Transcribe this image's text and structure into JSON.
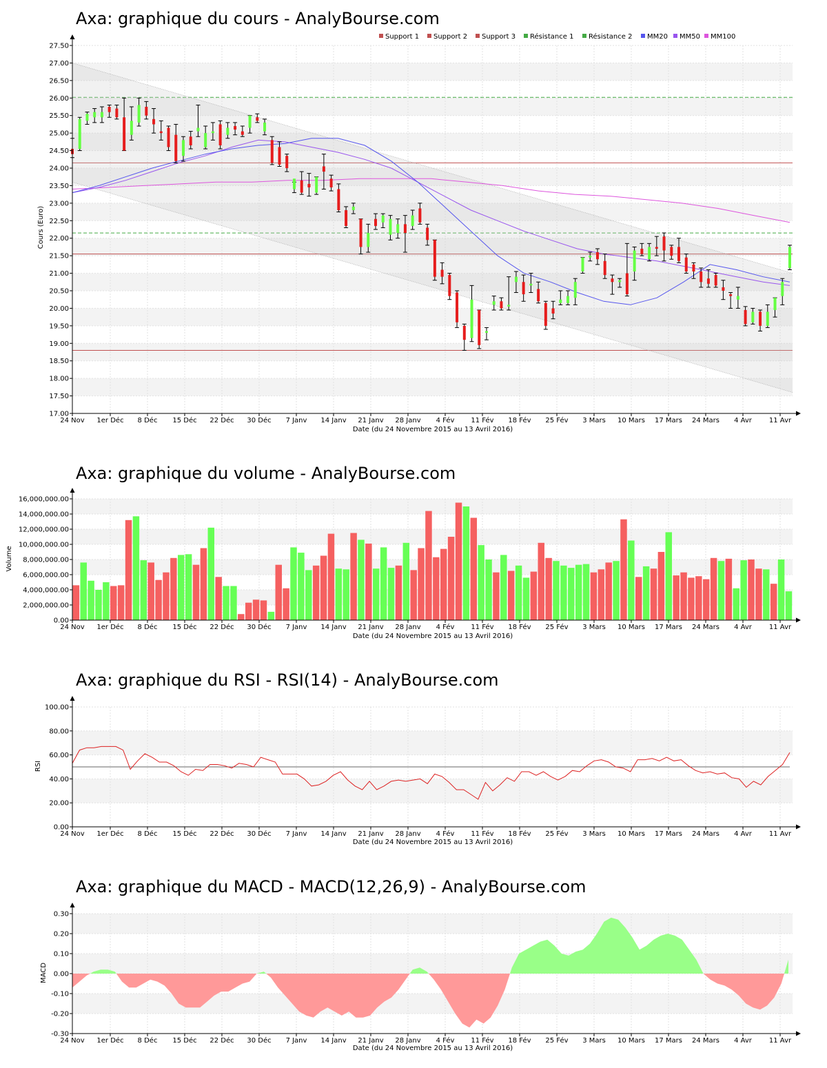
{
  "page": {
    "x_labels": [
      "24 Nov",
      "1er Déc",
      "8 Déc",
      "15 Déc",
      "22 Déc",
      "30 Déc",
      "7 Janv",
      "14 Janv",
      "21 Janv",
      "28 Janv",
      "4 Fév",
      "11 Fév",
      "18 Fév",
      "25 Fév",
      "3 Mars",
      "10 Mars",
      "17 Mars",
      "24 Mars",
      "4 Avr",
      "11 Avr"
    ],
    "date_label": "Date (du 24 Novembre 2015 au 13 Avril 2016)"
  },
  "colors": {
    "up": "#66ff44",
    "down": "#e61d1d",
    "vol_up": "#66ff55",
    "vol_down": "#f56060",
    "support": "#c05050",
    "resistance": "#44aa44",
    "mm20": "#5555ee",
    "mm50": "#9955ee",
    "mm100": "#dd55dd",
    "rsi": "#dd2222",
    "macd_pos": "#99ff88",
    "macd_neg": "#ff9999"
  },
  "chart_data": [
    {
      "type": "candlestick",
      "title": "Axa: graphique du cours - AnalyBourse.com",
      "ylabel": "Cours (Euro)",
      "ylim": [
        17.0,
        27.5
      ],
      "yticks": [
        "17.00",
        "17.50",
        "18.00",
        "18.50",
        "19.00",
        "19.50",
        "20.00",
        "20.50",
        "21.00",
        "21.50",
        "22.00",
        "22.50",
        "23.00",
        "23.50",
        "24.00",
        "24.50",
        "25.00",
        "25.50",
        "26.00",
        "26.50",
        "27.00",
        "27.50"
      ],
      "legend": [
        "Support 1",
        "Support 2",
        "Support 3",
        "Résistance 1",
        "Résistance 2",
        "MM20",
        "MM50",
        "MM100"
      ],
      "support_levels": [
        21.55,
        24.15,
        18.8
      ],
      "resistance_levels": [
        22.15,
        26.02
      ],
      "channel_upper": [
        27.0,
        21.0
      ],
      "channel_lower": [
        23.6,
        17.6
      ],
      "candles": [
        [
          24.55,
          24.85,
          24.4,
          24.3
        ],
        [
          24.55,
          25.45,
          25.4,
          24.5
        ],
        [
          25.35,
          25.6,
          25.55,
          25.25
        ],
        [
          25.45,
          25.7,
          25.6,
          25.3
        ],
        [
          25.45,
          25.75,
          25.6,
          25.3
        ],
        [
          25.75,
          25.8,
          25.6,
          25.45
        ],
        [
          25.7,
          25.8,
          25.45,
          25.4
        ],
        [
          25.45,
          26.0,
          24.5,
          24.5
        ],
        [
          24.95,
          25.75,
          25.35,
          24.8
        ],
        [
          25.3,
          26.0,
          25.8,
          25.2
        ],
        [
          25.75,
          25.9,
          25.5,
          25.4
        ],
        [
          25.4,
          25.7,
          25.25,
          25.0
        ],
        [
          25.05,
          25.35,
          25.0,
          24.8
        ],
        [
          25.15,
          25.2,
          24.6,
          24.5
        ],
        [
          24.95,
          25.25,
          24.2,
          24.15
        ],
        [
          24.35,
          24.9,
          24.8,
          24.2
        ],
        [
          24.9,
          25.05,
          24.65,
          24.55
        ],
        [
          25.05,
          25.8,
          25.15,
          24.9
        ],
        [
          24.6,
          25.2,
          25.0,
          24.55
        ],
        [
          25.0,
          25.3,
          25.05,
          24.8
        ],
        [
          25.25,
          25.35,
          24.65,
          24.55
        ],
        [
          24.95,
          25.3,
          25.15,
          24.85
        ],
        [
          25.2,
          25.3,
          25.1,
          24.95
        ],
        [
          25.05,
          25.2,
          24.95,
          24.9
        ],
        [
          25.15,
          25.5,
          25.5,
          25.0
        ],
        [
          25.45,
          25.55,
          25.35,
          25.3
        ],
        [
          25.05,
          25.4,
          25.3,
          24.95
        ],
        [
          24.8,
          24.9,
          24.15,
          24.1
        ],
        [
          24.6,
          24.75,
          24.1,
          24.05
        ],
        [
          24.35,
          24.4,
          24.0,
          23.9
        ],
        [
          23.4,
          23.6,
          23.7,
          23.3
        ],
        [
          23.65,
          23.9,
          23.3,
          23.25
        ],
        [
          23.55,
          23.85,
          23.45,
          23.2
        ],
        [
          23.3,
          23.75,
          23.75,
          23.25
        ],
        [
          24.05,
          24.4,
          23.9,
          23.4
        ],
        [
          23.7,
          23.8,
          23.45,
          23.35
        ],
        [
          23.4,
          23.55,
          22.8,
          22.75
        ],
        [
          22.8,
          22.9,
          22.35,
          22.3
        ],
        [
          22.8,
          23.0,
          22.9,
          22.7
        ],
        [
          22.55,
          22.55,
          21.75,
          21.55
        ],
        [
          21.75,
          22.4,
          22.15,
          21.6
        ],
        [
          22.55,
          22.7,
          22.35,
          22.25
        ],
        [
          22.45,
          22.7,
          22.65,
          22.3
        ],
        [
          22.1,
          22.65,
          22.55,
          21.95
        ],
        [
          22.15,
          22.55,
          22.4,
          22.0
        ],
        [
          22.4,
          22.65,
          22.15,
          21.6
        ],
        [
          22.35,
          22.8,
          22.65,
          22.25
        ],
        [
          22.85,
          23.0,
          22.45,
          22.4
        ],
        [
          22.3,
          22.4,
          21.95,
          21.8
        ],
        [
          21.95,
          21.95,
          20.9,
          20.8
        ],
        [
          21.1,
          21.3,
          20.9,
          20.7
        ],
        [
          20.95,
          21.0,
          20.35,
          20.25
        ],
        [
          20.45,
          20.5,
          19.6,
          19.45
        ],
        [
          19.5,
          19.55,
          19.1,
          18.8
        ],
        [
          19.15,
          20.65,
          20.25,
          19.05
        ],
        [
          19.95,
          19.95,
          18.95,
          18.85
        ],
        [
          19.3,
          19.45,
          19.35,
          19.1
        ],
        [
          20.1,
          20.35,
          20.2,
          19.95
        ],
        [
          20.2,
          20.3,
          20.0,
          19.95
        ],
        [
          20.05,
          20.9,
          20.1,
          19.95
        ],
        [
          20.75,
          21.05,
          20.9,
          20.45
        ],
        [
          20.75,
          20.95,
          20.4,
          20.2
        ],
        [
          20.65,
          21.0,
          20.7,
          20.45
        ],
        [
          20.55,
          20.75,
          20.2,
          20.15
        ],
        [
          20.15,
          20.2,
          19.5,
          19.4
        ],
        [
          20.0,
          20.2,
          19.85,
          19.7
        ],
        [
          20.15,
          20.5,
          20.25,
          20.1
        ],
        [
          20.15,
          20.5,
          20.35,
          20.1
        ],
        [
          20.3,
          20.85,
          20.75,
          20.1
        ],
        [
          21.05,
          21.45,
          21.45,
          21.0
        ],
        [
          21.45,
          21.6,
          21.5,
          21.35
        ],
        [
          21.6,
          21.7,
          21.4,
          21.25
        ],
        [
          21.35,
          21.55,
          20.95,
          20.85
        ],
        [
          20.85,
          20.95,
          20.75,
          20.4
        ],
        [
          20.75,
          20.85,
          20.8,
          20.6
        ],
        [
          21.0,
          21.85,
          20.4,
          20.35
        ],
        [
          21.05,
          21.75,
          21.65,
          20.8
        ],
        [
          21.7,
          21.85,
          21.55,
          21.5
        ],
        [
          21.4,
          21.85,
          21.75,
          21.35
        ],
        [
          21.75,
          22.05,
          21.7,
          21.5
        ],
        [
          22.05,
          22.15,
          21.65,
          21.35
        ],
        [
          21.75,
          21.8,
          21.5,
          21.4
        ],
        [
          21.75,
          22.0,
          21.35,
          21.3
        ],
        [
          21.45,
          21.55,
          21.05,
          21.0
        ],
        [
          21.25,
          21.3,
          21.05,
          20.85
        ],
        [
          21.05,
          21.15,
          20.75,
          20.6
        ],
        [
          20.85,
          21.1,
          20.7,
          20.6
        ],
        [
          20.95,
          21.0,
          20.65,
          20.6
        ],
        [
          20.6,
          20.8,
          20.5,
          20.25
        ],
        [
          20.4,
          20.45,
          20.35,
          20.0
        ],
        [
          20.25,
          20.6,
          20.35,
          20.0
        ],
        [
          19.95,
          20.05,
          19.55,
          19.5
        ],
        [
          19.6,
          20.0,
          19.9,
          19.55
        ],
        [
          19.9,
          19.95,
          19.5,
          19.35
        ],
        [
          19.5,
          20.1,
          19.9,
          19.45
        ],
        [
          19.95,
          20.3,
          20.3,
          19.75
        ],
        [
          20.35,
          20.85,
          20.75,
          20.1
        ],
        [
          21.15,
          21.8,
          21.75,
          21.1
        ]
      ],
      "mm20": [
        23.3,
        23.5,
        23.75,
        24.0,
        24.2,
        24.4,
        24.55,
        24.65,
        24.7,
        24.85,
        24.85,
        24.65,
        24.2,
        23.6,
        22.9,
        22.2,
        21.5,
        21.0,
        20.75,
        20.45,
        20.2,
        20.1,
        20.3,
        20.75,
        21.25,
        21.1,
        20.9,
        20.75
      ],
      "mm50": [
        23.3,
        23.45,
        23.65,
        23.9,
        24.15,
        24.35,
        24.6,
        24.8,
        24.75,
        24.6,
        24.45,
        24.25,
        24.0,
        23.6,
        23.2,
        22.8,
        22.5,
        22.2,
        21.95,
        21.7,
        21.55,
        21.45,
        21.35,
        21.2,
        21.05,
        20.9,
        20.75,
        20.65
      ],
      "mm100": [
        23.4,
        23.45,
        23.5,
        23.55,
        23.6,
        23.6,
        23.65,
        23.65,
        23.7,
        23.7,
        23.7,
        23.6,
        23.5,
        23.35,
        23.25,
        23.2,
        23.1,
        23.0,
        22.85,
        22.65,
        22.45
      ],
      "x_start": "24 Nov",
      "x_end": "13 Avril 2016"
    },
    {
      "type": "bar",
      "title": "Axa: graphique du volume - AnalyBourse.com",
      "ylabel": "Volume",
      "ylim": [
        0,
        16000000
      ],
      "yticks": [
        "0.00",
        "2,000,000.00",
        "4,000,000.00",
        "6,000,000.00",
        "8,000,000.00",
        "10,000,000.00",
        "12,000,000.00",
        "14,000,000.00",
        "16,000,000.00"
      ],
      "values": [
        4600000,
        7600000,
        5200000,
        4000000,
        5000000,
        4500000,
        4600000,
        13200000,
        13700000,
        7900000,
        7600000,
        5300000,
        6300000,
        8200000,
        8600000,
        8700000,
        7300000,
        9500000,
        12200000,
        5700000,
        4500000,
        4500000,
        800000,
        2300000,
        2700000,
        2600000,
        1100000,
        7300000,
        4200000,
        9600000,
        8900000,
        6600000,
        7200000,
        8500000,
        11400000,
        6800000,
        6700000,
        11500000,
        10600000,
        10100000,
        6800000,
        9600000,
        6900000,
        7200000,
        10200000,
        6600000,
        9500000,
        14400000,
        8300000,
        9400000,
        11000000,
        15500000,
        15000000,
        13500000,
        9900000,
        8000000,
        6300000,
        8600000,
        6500000,
        7200000,
        5600000,
        6400000,
        10200000,
        8200000,
        7800000,
        7200000,
        6900000,
        7300000,
        7400000,
        6300000,
        6700000,
        7600000,
        7800000,
        13300000,
        10500000,
        5700000,
        7100000,
        6800000,
        9000000,
        11600000,
        5900000,
        6300000,
        5600000,
        5800000,
        5400000,
        8200000,
        7800000,
        8100000,
        4200000,
        7900000,
        8000000,
        6800000,
        6700000,
        4800000,
        8000000,
        3800000
      ],
      "up": [
        0,
        1,
        1,
        1,
        1,
        0,
        0,
        0,
        1,
        1,
        0,
        0,
        0,
        0,
        1,
        1,
        0,
        0,
        1,
        0,
        1,
        1,
        0,
        0,
        0,
        0,
        1,
        0,
        0,
        1,
        1,
        1,
        0,
        0,
        0,
        1,
        1,
        0,
        1,
        0,
        1,
        1,
        1,
        0,
        1,
        0,
        0,
        0,
        0,
        0,
        0,
        0,
        1,
        0,
        1,
        1,
        0,
        1,
        0,
        1,
        1,
        0,
        0,
        0,
        1,
        1,
        1,
        1,
        1,
        0,
        0,
        0,
        1,
        0,
        1,
        0,
        1,
        0,
        0,
        1,
        0,
        0,
        0,
        0,
        0,
        0,
        1,
        0,
        1,
        1,
        0,
        0,
        1,
        0,
        1,
        1
      ],
      "x_start": "24 Nov",
      "x_end": "13 Avril 2016"
    },
    {
      "type": "line",
      "title": "Axa: graphique du RSI - RSI(14) - AnalyBourse.com",
      "ylabel": "RSI",
      "ylim": [
        0,
        100
      ],
      "yticks": [
        "0.00",
        "20.00",
        "40.00",
        "60.00",
        "80.00",
        "100.00"
      ],
      "reference": 50,
      "values": [
        53,
        64,
        66,
        66,
        67,
        67,
        67,
        64,
        48,
        55,
        61,
        58,
        54,
        54,
        51,
        46,
        43,
        48,
        47,
        52,
        52,
        51,
        49,
        53,
        52,
        50,
        58,
        56,
        54,
        44,
        44,
        44,
        40,
        34,
        35,
        38,
        43,
        46,
        39,
        34,
        31,
        38,
        31,
        34,
        38,
        39,
        38,
        39,
        40,
        36,
        44,
        42,
        37,
        31,
        31,
        27,
        23,
        37,
        30,
        35,
        41,
        38,
        46,
        46,
        43,
        46,
        42,
        39,
        42,
        47,
        46,
        51,
        55,
        56,
        54,
        50,
        49,
        46,
        56,
        56,
        57,
        55,
        58,
        55,
        56,
        51,
        47,
        45,
        46,
        44,
        45,
        41,
        40,
        33,
        38,
        35,
        42,
        47,
        52,
        62
      ],
      "x_start": "24 Nov",
      "x_end": "13 Avril 2016"
    },
    {
      "type": "area",
      "title": "Axa: graphique du MACD - MACD(12,26,9) - AnalyBourse.com",
      "ylabel": "MACD",
      "ylim": [
        -0.3,
        0.3
      ],
      "yticks": [
        "-0.30",
        "-0.20",
        "-0.10",
        "0.00",
        "0.10",
        "0.20",
        "0.30"
      ],
      "values": [
        -0.07,
        -0.04,
        -0.01,
        0.01,
        0.02,
        0.02,
        0.01,
        -0.04,
        -0.07,
        -0.07,
        -0.05,
        -0.03,
        -0.04,
        -0.06,
        -0.1,
        -0.15,
        -0.17,
        -0.17,
        -0.17,
        -0.14,
        -0.11,
        -0.09,
        -0.09,
        -0.07,
        -0.05,
        -0.04,
        0.0,
        0.01,
        -0.02,
        -0.07,
        -0.11,
        -0.15,
        -0.19,
        -0.21,
        -0.22,
        -0.19,
        -0.17,
        -0.19,
        -0.21,
        -0.19,
        -0.22,
        -0.22,
        -0.21,
        -0.17,
        -0.14,
        -0.12,
        -0.08,
        -0.03,
        0.02,
        0.03,
        0.01,
        -0.03,
        -0.08,
        -0.14,
        -0.2,
        -0.25,
        -0.27,
        -0.23,
        -0.25,
        -0.22,
        -0.16,
        -0.08,
        0.03,
        0.1,
        0.12,
        0.14,
        0.16,
        0.17,
        0.14,
        0.1,
        0.09,
        0.11,
        0.12,
        0.15,
        0.2,
        0.26,
        0.28,
        0.27,
        0.23,
        0.18,
        0.12,
        0.14,
        0.17,
        0.19,
        0.2,
        0.19,
        0.17,
        0.12,
        0.07,
        0.0,
        -0.03,
        -0.05,
        -0.06,
        -0.08,
        -0.11,
        -0.15,
        -0.17,
        -0.18,
        -0.16,
        -0.12,
        -0.05,
        0.07
      ],
      "x_start": "24 Nov",
      "x_end": "13 Avril 2016"
    }
  ]
}
